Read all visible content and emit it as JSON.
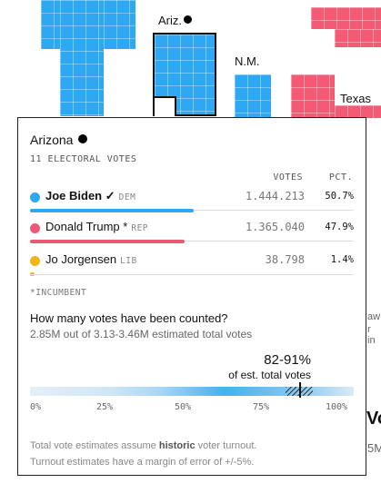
{
  "map": {
    "labels": {
      "arizona": "Ariz.",
      "new_mexico": "N.M.",
      "texas": "Texas"
    },
    "bg_fragments": [
      "aw",
      "r in",
      "Vo",
      "5M"
    ]
  },
  "card": {
    "state": "Arizona",
    "electoral": "11 ELECTORAL VOTES",
    "col_votes": "VOTES",
    "col_pct": "PCT.",
    "candidates": [
      {
        "name": "Joe Biden",
        "mark": "✓",
        "party": "DEM",
        "votes": "1.444.213",
        "pct": "50.7%",
        "share": 50.7,
        "color": "#2ea8f2"
      },
      {
        "name": "Donald Trump",
        "mark": "*",
        "party": "REP",
        "votes": "1.365.040",
        "pct": "47.9%",
        "share": 47.9,
        "color": "#ec5a72"
      },
      {
        "name": "Jo Jorgensen",
        "mark": "",
        "party": "LIB",
        "votes": "38.798",
        "pct": "1.4%",
        "share": 1.4,
        "color": "#f1b51c"
      }
    ],
    "incumbent": "*INCUMBENT",
    "question": "How many votes have been counted?",
    "counted": "2.85M out of 3.13-3.46M estimated total votes",
    "range": "82-91%",
    "range_sub": "of est. total votes",
    "ticks": [
      "0%",
      "25%",
      "50%",
      "75%",
      "100%"
    ],
    "foot_pre": "Total vote estimates assume ",
    "foot_bold": "historic",
    "foot_post": " voter turnout.",
    "foot_line2": "Turnout estimates have a margin of error of +/-5%."
  }
}
